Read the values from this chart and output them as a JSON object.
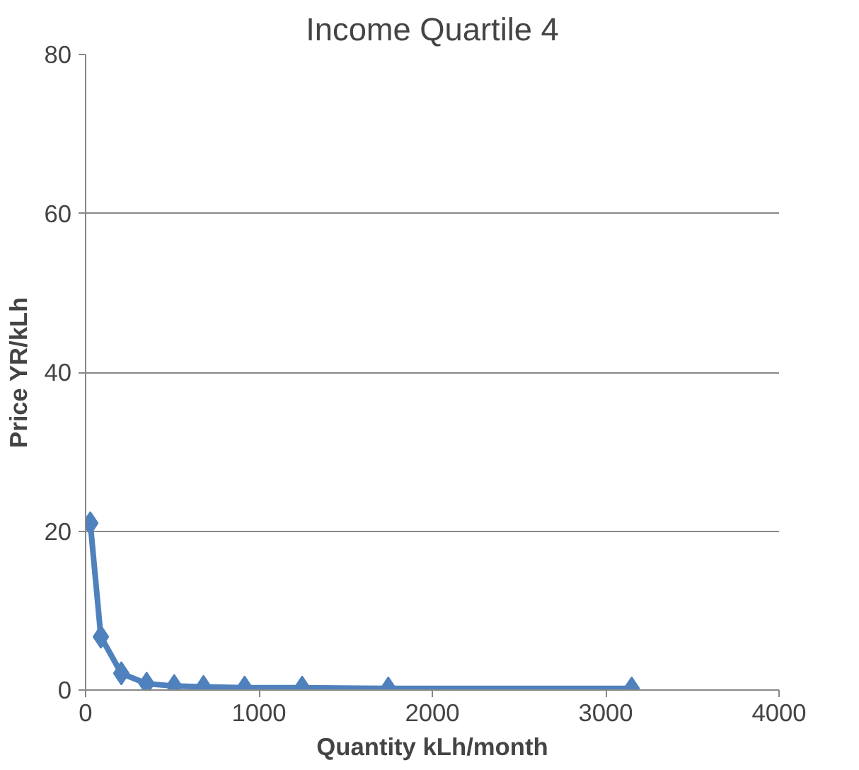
{
  "chart_data": {
    "type": "line",
    "title": "Income Quartile 4",
    "xlabel": "Quantity kLh/month",
    "ylabel": "Price YR/kLh",
    "x": [
      27,
      88,
      206,
      352,
      511,
      680,
      917,
      1249,
      1746,
      3150
    ],
    "series": [
      {
        "color": "#4f81bd",
        "values": [
          21,
          6.7,
          2.1,
          0.8,
          0.5,
          0.4,
          0.3,
          0.3,
          0.2,
          0.2
        ]
      }
    ],
    "xlim": [
      0,
      4000
    ],
    "xticks": [
      0,
      1000,
      2000,
      3000,
      4000
    ],
    "ylim": [
      0,
      80
    ],
    "yticks": [
      0,
      20,
      40,
      60,
      80
    ],
    "grid": "y",
    "marker": "diamond",
    "line_style": "solid"
  }
}
